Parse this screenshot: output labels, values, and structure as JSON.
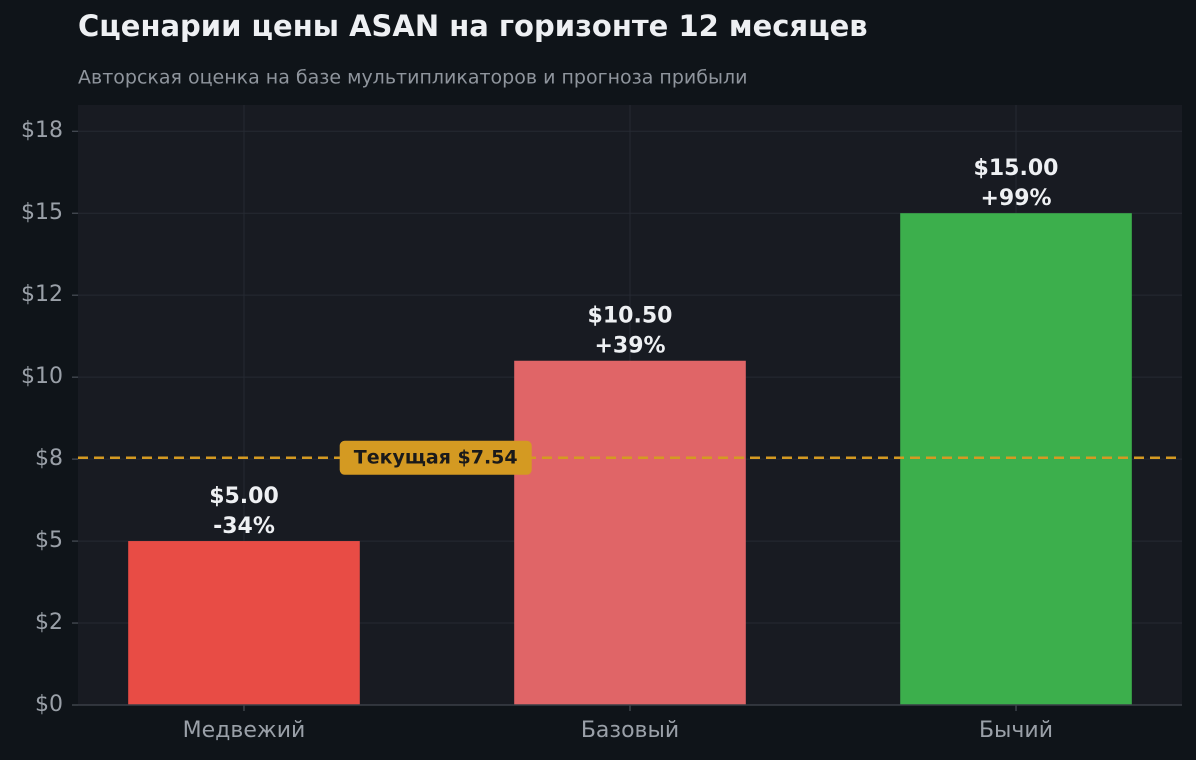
{
  "chart_data": {
    "type": "bar",
    "title": "Сценарии цены ASAN на горизонте 12 месяцев",
    "subtitle": "Авторская оценка на базе мультипликаторов и прогноза прибыли",
    "categories": [
      "Медвежий",
      "Базовый",
      "Бычий"
    ],
    "values": [
      5,
      10.5,
      15
    ],
    "value_labels": [
      "$5.00",
      "$10.50",
      "$15.00"
    ],
    "change_labels": [
      "-34%",
      "+39%",
      "+99%"
    ],
    "colors": [
      "#e84c45",
      "#e06567",
      "#3caf4c"
    ],
    "ylim": [
      0,
      18.3
    ],
    "yticks": [
      {
        "value": 0,
        "label": "$0"
      },
      {
        "value": 2.5,
        "label": "$2"
      },
      {
        "value": 5,
        "label": "$5"
      },
      {
        "value": 7.5,
        "label": "$8"
      },
      {
        "value": 10,
        "label": "$10"
      },
      {
        "value": 12.5,
        "label": "$12"
      },
      {
        "value": 15,
        "label": "$15"
      },
      {
        "value": 17.5,
        "label": "$18"
      }
    ],
    "grid": true,
    "reference_line": {
      "value": 7.54,
      "label": "Текущая $7.54",
      "color": "#d49a22"
    }
  }
}
